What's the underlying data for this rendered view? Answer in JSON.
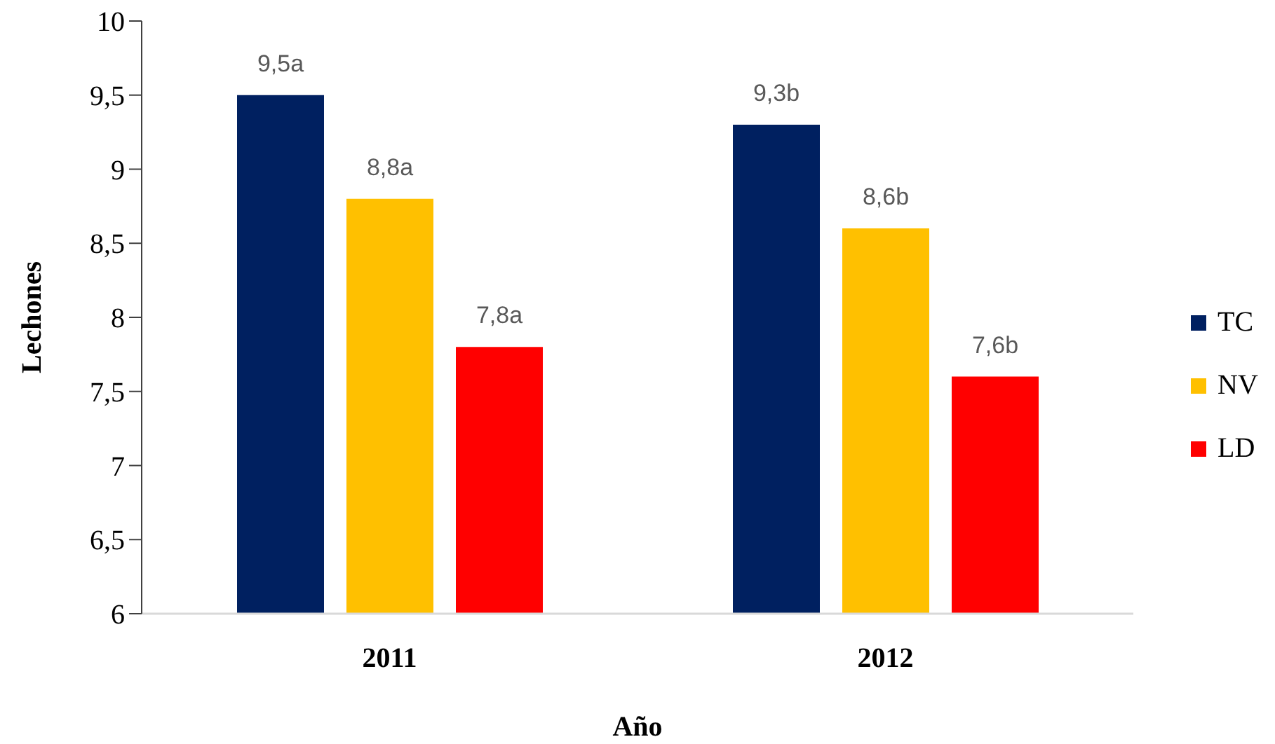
{
  "chart_data": {
    "type": "bar",
    "xlabel": "Año",
    "ylabel": "Lechones",
    "categories": [
      "2011",
      "2012"
    ],
    "series": [
      {
        "name": "TC",
        "color": "#002060",
        "values": [
          9.5,
          9.3
        ],
        "value_labels": [
          "9,5a",
          "9,3b"
        ]
      },
      {
        "name": "NV",
        "color": "#ffc000",
        "values": [
          8.8,
          8.6
        ],
        "value_labels": [
          "8,8a",
          "8,6b"
        ]
      },
      {
        "name": "LD",
        "color": "#ff0000",
        "values": [
          7.8,
          7.6
        ],
        "value_labels": [
          "7,8a",
          "7,6b"
        ]
      }
    ],
    "ylim": [
      6,
      10
    ],
    "yticks": [
      6,
      {
        "value": 6.5,
        "label": "6,5"
      },
      7,
      {
        "value": 7.5,
        "label": "7,5"
      },
      8,
      {
        "value": 8.5,
        "label": "8,5"
      },
      9,
      {
        "value": 9.5,
        "label": "9,5"
      },
      10
    ],
    "grid": false,
    "legend": "right"
  }
}
